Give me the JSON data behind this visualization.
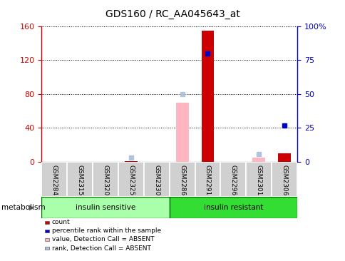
{
  "title": "GDS160 / RC_AA045643_at",
  "samples": [
    "GSM2284",
    "GSM2315",
    "GSM2320",
    "GSM2325",
    "GSM2330",
    "GSM2286",
    "GSM2291",
    "GSM2296",
    "GSM2301",
    "GSM2306"
  ],
  "n_samples": 10,
  "groups": [
    {
      "label": "insulin sensitive",
      "color": "#aaffaa",
      "indices": [
        0,
        1,
        2,
        3,
        4
      ]
    },
    {
      "label": "insulin resistant",
      "color": "#33dd33",
      "indices": [
        5,
        6,
        7,
        8,
        9
      ]
    }
  ],
  "group_label": "metabolism",
  "left_yaxis": {
    "min": 0,
    "max": 160,
    "ticks": [
      0,
      40,
      80,
      120,
      160
    ],
    "color": "#CC0000"
  },
  "right_yaxis": {
    "min": 0,
    "max": 100,
    "ticks": [
      0,
      25,
      50,
      75,
      100
    ],
    "color": "#0000CC"
  },
  "count_bars": {
    "values": [
      0,
      0,
      0,
      1,
      0,
      0,
      155,
      0,
      0,
      10
    ],
    "color": "#CC0000"
  },
  "rank_dots": {
    "values": [
      0,
      0,
      0,
      0,
      0,
      0,
      80,
      0,
      0,
      27
    ],
    "color": "#0000CC",
    "show": [
      false,
      false,
      false,
      false,
      false,
      false,
      true,
      false,
      false,
      true
    ]
  },
  "absent_value_bars": {
    "values": [
      0,
      0,
      0,
      0,
      0,
      70,
      0,
      0,
      5,
      0
    ],
    "color": "#FFB6C1"
  },
  "absent_rank_dots": {
    "values": [
      0,
      0,
      0,
      3,
      0,
      50,
      0,
      0,
      6,
      0
    ],
    "color": "#B0C4DE",
    "show": [
      false,
      false,
      false,
      true,
      false,
      true,
      false,
      false,
      true,
      false
    ]
  },
  "legend_items": [
    {
      "label": "count",
      "color": "#CC0000"
    },
    {
      "label": "percentile rank within the sample",
      "color": "#0000CC"
    },
    {
      "label": "value, Detection Call = ABSENT",
      "color": "#FFB6C1"
    },
    {
      "label": "rank, Detection Call = ABSENT",
      "color": "#B0C4DE"
    }
  ],
  "bg_color": "#FFFFFF",
  "plot_bg_color": "#FFFFFF",
  "sample_box_color": "#D0D0D0",
  "group_border_color": "#007700"
}
